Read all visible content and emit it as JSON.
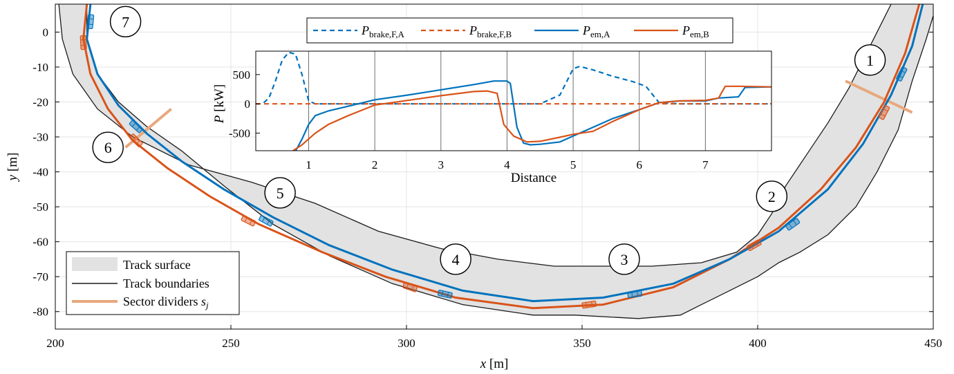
{
  "chart_data": [
    {
      "type": "line",
      "xlabel_var": "x",
      "xlabel_unit": "[m]",
      "ylabel_var": "y",
      "ylabel_unit": "[m]",
      "xlim": [
        200,
        450
      ],
      "ylim": [
        -85,
        8
      ],
      "xticks": [
        200,
        250,
        300,
        350,
        400,
        450
      ],
      "yticks": [
        0,
        -10,
        -20,
        -30,
        -40,
        -50,
        -60,
        -70,
        -80
      ],
      "grid": true,
      "legend_position": "bottom-left",
      "legend": [
        {
          "label": "Track surface"
        },
        {
          "label": "Track boundaries"
        },
        {
          "label": "Sector dividers ",
          "sub": "j"
        }
      ],
      "colors": {
        "surface": "#e2e2e2",
        "boundary": "#000000",
        "line_a": "#0072bd",
        "line_b": "#d95319",
        "divider": "#e8a87c"
      },
      "outer_boundary": [
        [
          209,
          8
        ],
        [
          209,
          -2
        ],
        [
          212,
          -12
        ],
        [
          218,
          -20
        ],
        [
          226,
          -27
        ],
        [
          236,
          -34
        ],
        [
          248,
          -44
        ],
        [
          262,
          -55
        ],
        [
          278,
          -64
        ],
        [
          296,
          -72
        ],
        [
          316,
          -78
        ],
        [
          336,
          -81
        ],
        [
          348,
          -81
        ],
        [
          366,
          -82
        ],
        [
          378,
          -81
        ],
        [
          384,
          -78
        ],
        [
          392,
          -74
        ],
        [
          400,
          -70
        ],
        [
          406,
          -66
        ],
        [
          412,
          -63
        ],
        [
          420,
          -58
        ],
        [
          428,
          -50
        ],
        [
          434,
          -40
        ],
        [
          440,
          -28
        ],
        [
          444,
          -14
        ],
        [
          448,
          -2
        ],
        [
          451,
          8
        ]
      ],
      "inner_boundary": [
        [
          201,
          8
        ],
        [
          202,
          -2
        ],
        [
          205,
          -12
        ],
        [
          212,
          -22
        ],
        [
          222,
          -30
        ],
        [
          238,
          -38
        ],
        [
          256,
          -43
        ],
        [
          274,
          -49
        ],
        [
          292,
          -57
        ],
        [
          310,
          -62
        ],
        [
          326,
          -65
        ],
        [
          342,
          -67
        ],
        [
          356,
          -67
        ],
        [
          370,
          -67
        ],
        [
          384,
          -66
        ],
        [
          394,
          -63
        ],
        [
          400,
          -58
        ],
        [
          404,
          -52
        ],
        [
          408,
          -44
        ],
        [
          414,
          -35
        ],
        [
          420,
          -26
        ],
        [
          426,
          -16
        ],
        [
          432,
          -4
        ],
        [
          438,
          8
        ]
      ],
      "series": [
        {
          "name": "A",
          "x": [
            210,
            209,
            212,
            218,
            226,
            236,
            248,
            262,
            278,
            296,
            316,
            336,
            356,
            376,
            392,
            406,
            420,
            430,
            438,
            444,
            447
          ],
          "y": [
            8,
            -2,
            -12,
            -21,
            -29,
            -37,
            -45,
            -53,
            -61,
            -68,
            -74,
            -77,
            -76,
            -72,
            -65,
            -57,
            -45,
            -32,
            -18,
            -4,
            8
          ]
        },
        {
          "name": "B",
          "x": [
            209,
            208,
            210,
            215,
            222,
            232,
            244,
            258,
            276,
            294,
            314,
            336,
            356,
            376,
            392,
            406,
            418,
            428,
            436,
            442,
            446
          ],
          "y": [
            8,
            -2,
            -12,
            -22,
            -31,
            -39,
            -47,
            -55,
            -63,
            -70,
            -76,
            -79,
            -78,
            -73,
            -65,
            -56,
            -45,
            -33,
            -20,
            -6,
            8
          ]
        }
      ],
      "car_markers": {
        "A": [
          [
            210,
            3
          ],
          [
            223,
            -27
          ],
          [
            260,
            -54
          ],
          [
            311,
            -75
          ],
          [
            365,
            -75
          ],
          [
            410,
            -55
          ],
          [
            441,
            -12
          ]
        ],
        "B": [
          [
            208,
            -3
          ],
          [
            223,
            -31
          ],
          [
            255,
            -54
          ],
          [
            301,
            -73
          ],
          [
            352,
            -78
          ],
          [
            399,
            -61
          ],
          [
            436,
            -23
          ]
        ]
      },
      "sector_dividers": [
        [
          [
            425,
            -14
          ],
          [
            444,
            -23
          ]
        ],
        [
          [
            233,
            -22
          ],
          [
            220,
            -33
          ]
        ]
      ],
      "sector_labels": [
        {
          "text": "1",
          "x": 432,
          "y": -8
        },
        {
          "text": "2",
          "x": 404,
          "y": -47
        },
        {
          "text": "3",
          "x": 362,
          "y": -65
        },
        {
          "text": "4",
          "x": 314,
          "y": -65
        },
        {
          "text": "5",
          "x": 264,
          "y": -46
        },
        {
          "text": "6",
          "x": 215,
          "y": -33
        },
        {
          "text": "7",
          "x": 220,
          "y": 3
        }
      ]
    },
    {
      "type": "line",
      "xlabel": "Distance",
      "ylabel_var": "P",
      "ylabel_unit": "[kW]",
      "xlim": [
        0.2,
        8.0
      ],
      "ylim": [
        -800,
        900
      ],
      "xticks": [
        1,
        2,
        3,
        4,
        5,
        6,
        7
      ],
      "yticks": [
        500,
        0,
        -500
      ],
      "legend_position": "top",
      "series": [
        {
          "name_base": "P",
          "name_sub": "brake,F,A",
          "style": "dashed",
          "color": "#0072bd",
          "x": [
            0.2,
            0.3,
            0.4,
            0.5,
            0.6,
            0.7,
            0.8,
            0.9,
            1.0,
            1.1,
            1.5,
            2,
            3,
            4,
            4.5,
            4.8,
            5.0,
            5.1,
            5.3,
            5.6,
            5.9,
            6.1,
            6.3,
            6.6,
            7,
            8
          ],
          "y": [
            0,
            0,
            100,
            400,
            750,
            880,
            850,
            500,
            50,
            0,
            0,
            0,
            0,
            0,
            0,
            150,
            600,
            640,
            580,
            470,
            380,
            300,
            20,
            0,
            0,
            0
          ]
        },
        {
          "name_base": "P",
          "name_sub": "brake,F,B",
          "style": "dashed",
          "color": "#d95319",
          "x": [
            0.2,
            8.0
          ],
          "y": [
            0,
            0
          ]
        },
        {
          "name_base": "P",
          "name_sub": "em,A",
          "style": "solid",
          "color": "#0072bd",
          "x": [
            0.2,
            0.6,
            0.8,
            0.9,
            1.0,
            1.1,
            1.3,
            1.6,
            2,
            2.5,
            3,
            3.5,
            3.8,
            4.0,
            4.05,
            4.15,
            4.25,
            4.35,
            4.5,
            4.8,
            5.0,
            5.3,
            5.6,
            6,
            6.3,
            6.6,
            7,
            7.2,
            7.5,
            7.6,
            8.0
          ],
          "y": [
            -820,
            -820,
            -810,
            -600,
            -350,
            -200,
            -120,
            -40,
            70,
            150,
            240,
            330,
            390,
            390,
            350,
            -400,
            -670,
            -700,
            -690,
            -650,
            -550,
            -400,
            -250,
            -100,
            20,
            50,
            50,
            100,
            120,
            280,
            290
          ]
        },
        {
          "name_base": "P",
          "name_sub": "em,B",
          "style": "solid",
          "color": "#d95319",
          "x": [
            0.2,
            0.6,
            0.75,
            0.9,
            1.1,
            1.3,
            1.6,
            2,
            2.5,
            3,
            3.5,
            3.7,
            3.85,
            3.95,
            4.1,
            4.3,
            4.5,
            4.8,
            5.0,
            5.3,
            5.6,
            6,
            6.3,
            6.6,
            7,
            7.2,
            7.3,
            7.5,
            8.0
          ],
          "y": [
            -820,
            -820,
            -810,
            -700,
            -500,
            -350,
            -200,
            -20,
            60,
            140,
            210,
            220,
            180,
            -350,
            -550,
            -650,
            -640,
            -570,
            -520,
            -470,
            -300,
            -100,
            20,
            50,
            60,
            100,
            300,
            300,
            290
          ]
        }
      ]
    }
  ]
}
